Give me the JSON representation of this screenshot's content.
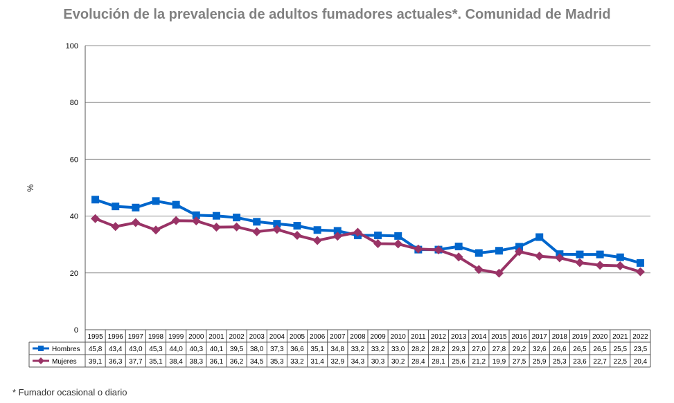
{
  "chart_data": {
    "type": "line",
    "title": "Evolución de la prevalencia de adultos fumadores actuales*. Comunidad de Madrid",
    "ylabel": "%",
    "xlabel": "",
    "ylim": [
      0,
      100
    ],
    "yticks": [
      0,
      20,
      40,
      60,
      80,
      100
    ],
    "grid": true,
    "legend": "data-table-left",
    "categories": [
      "1995",
      "1996",
      "1997",
      "1998",
      "1999",
      "2000",
      "2001",
      "2002",
      "2003",
      "2004",
      "2005",
      "2006",
      "2007",
      "2008",
      "2009",
      "2010",
      "2011",
      "2012",
      "2013",
      "2014",
      "2015",
      "2016",
      "2017",
      "2018",
      "2019",
      "2020",
      "2021",
      "2022"
    ],
    "series": [
      {
        "name": "Hombres",
        "color": "#0066CC",
        "marker": "square",
        "values": [
          45.8,
          43.4,
          43.0,
          45.3,
          44.0,
          40.3,
          40.1,
          39.5,
          38.0,
          37.3,
          36.6,
          35.1,
          34.8,
          33.2,
          33.2,
          33.0,
          28.2,
          28.2,
          29.3,
          27.0,
          27.8,
          29.2,
          32.6,
          26.6,
          26.5,
          26.5,
          25.5,
          23.5
        ],
        "labels": [
          "45,8",
          "43,4",
          "43,0",
          "45,3",
          "44,0",
          "40,3",
          "40,1",
          "39,5",
          "38,0",
          "37,3",
          "36,6",
          "35,1",
          "34,8",
          "33,2",
          "33,2",
          "33,0",
          "28,2",
          "28,2",
          "29,3",
          "27,0",
          "27,8",
          "29,2",
          "32,6",
          "26,6",
          "26,5",
          "26,5",
          "25,5",
          "23,5"
        ]
      },
      {
        "name": "Mujeres",
        "color": "#993366",
        "marker": "diamond",
        "values": [
          39.1,
          36.3,
          37.7,
          35.1,
          38.4,
          38.3,
          36.1,
          36.2,
          34.5,
          35.3,
          33.2,
          31.4,
          32.9,
          34.3,
          30.3,
          30.2,
          28.4,
          28.1,
          25.6,
          21.2,
          19.9,
          27.5,
          25.9,
          25.3,
          23.6,
          22.7,
          22.5,
          20.4
        ],
        "labels": [
          "39,1",
          "36,3",
          "37,7",
          "35,1",
          "38,4",
          "38,3",
          "36,1",
          "36,2",
          "34,5",
          "35,3",
          "33,2",
          "31,4",
          "32,9",
          "34,3",
          "30,3",
          "30,2",
          "28,4",
          "28,1",
          "25,6",
          "21,2",
          "19,9",
          "27,5",
          "25,9",
          "25,3",
          "23,6",
          "22,7",
          "22,5",
          "20,4"
        ]
      }
    ]
  },
  "footnote": "* Fumador ocasional o diario"
}
